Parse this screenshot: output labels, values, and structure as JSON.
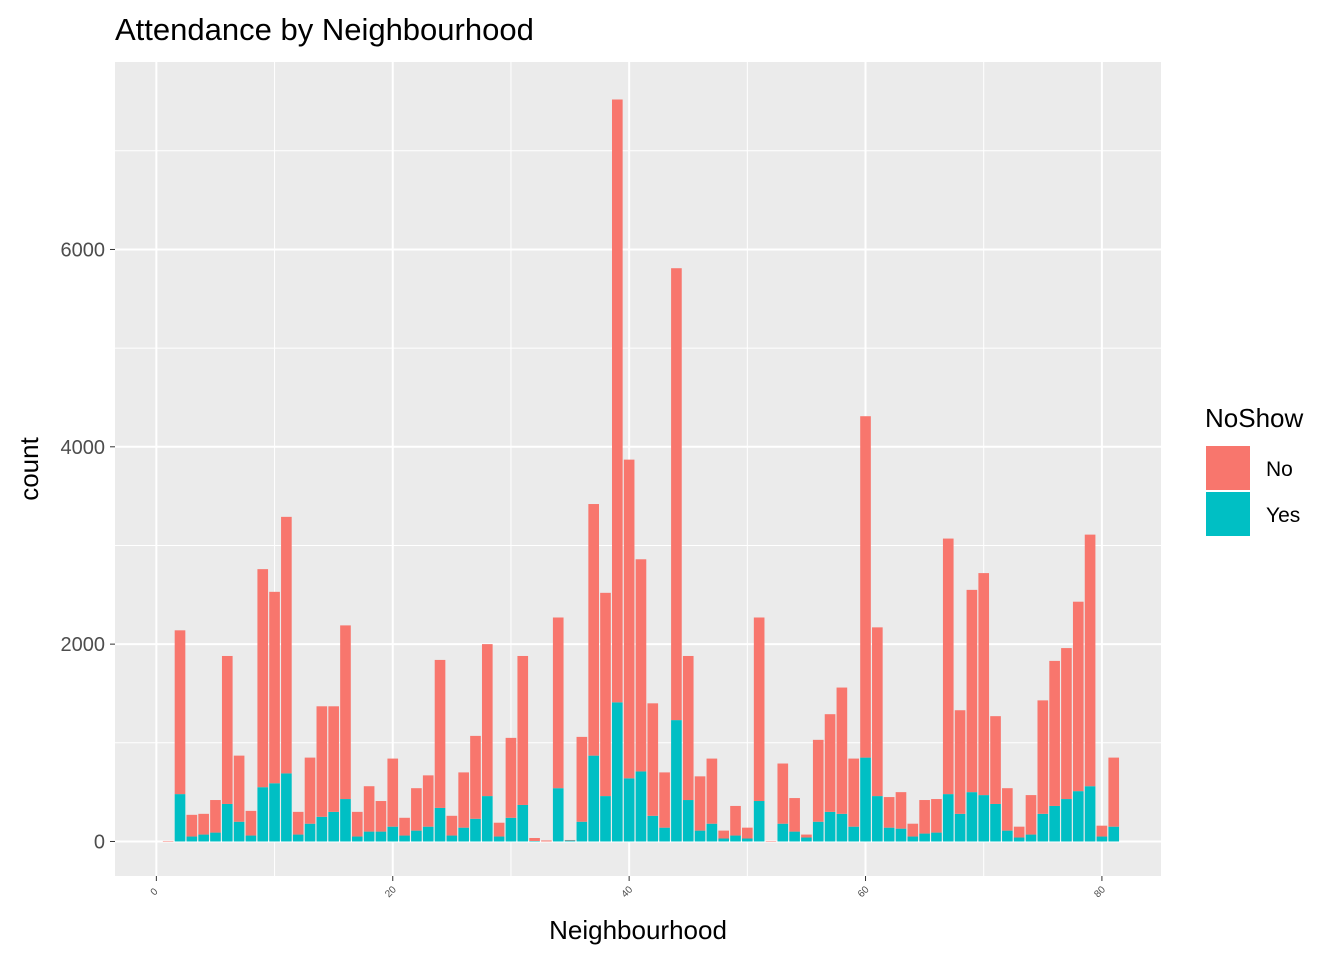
{
  "chart_data": {
    "type": "bar",
    "stacked": true,
    "title": "Attendance by Neighbourhood",
    "xlabel": "Neighbourhood",
    "ylabel": "count",
    "xlim": [
      -3.5,
      85
    ],
    "ylim": [
      -350,
      7900
    ],
    "x_ticks": [
      0,
      20,
      40,
      60,
      80
    ],
    "y_ticks": [
      0,
      2000,
      4000,
      6000
    ],
    "grid": true,
    "legend": {
      "title": "NoShow",
      "position": "right",
      "entries": [
        {
          "label": "No",
          "color": "#F8766D"
        },
        {
          "label": "Yes",
          "color": "#00BFC4"
        }
      ]
    },
    "x": [
      1,
      2,
      3,
      4,
      5,
      6,
      7,
      8,
      9,
      10,
      11,
      12,
      13,
      14,
      15,
      16,
      17,
      18,
      19,
      20,
      21,
      22,
      23,
      24,
      25,
      26,
      27,
      28,
      29,
      30,
      31,
      32,
      33,
      34,
      35,
      36,
      37,
      38,
      39,
      40,
      41,
      42,
      43,
      44,
      45,
      46,
      47,
      48,
      49,
      50,
      51,
      52,
      53,
      54,
      55,
      56,
      57,
      58,
      59,
      60,
      61,
      62,
      63,
      64,
      65,
      66,
      67,
      68,
      69,
      70,
      71,
      72,
      73,
      74,
      75,
      76,
      77,
      78,
      79,
      80,
      81
    ],
    "series": [
      {
        "name": "Yes",
        "color": "#00BFC4",
        "values": [
          0,
          480,
          50,
          70,
          90,
          380,
          200,
          60,
          550,
          590,
          690,
          70,
          180,
          250,
          300,
          430,
          50,
          100,
          100,
          150,
          60,
          110,
          150,
          340,
          60,
          140,
          230,
          460,
          50,
          240,
          370,
          5,
          0,
          540,
          10,
          200,
          870,
          460,
          1410,
          640,
          710,
          260,
          140,
          1230,
          420,
          110,
          180,
          30,
          60,
          30,
          410,
          0,
          180,
          100,
          40,
          200,
          300,
          280,
          150,
          850,
          460,
          140,
          130,
          50,
          80,
          90,
          480,
          280,
          500,
          470,
          380,
          110,
          40,
          70,
          280,
          360,
          430,
          510,
          560,
          50,
          150
        ]
      },
      {
        "name": "No",
        "color": "#F8766D",
        "values": [
          5,
          1660,
          220,
          210,
          330,
          1500,
          670,
          250,
          2210,
          1940,
          2600,
          230,
          670,
          1120,
          1070,
          1760,
          250,
          460,
          310,
          690,
          180,
          430,
          520,
          1500,
          200,
          560,
          840,
          1540,
          140,
          810,
          1510,
          30,
          10,
          1730,
          5,
          860,
          2550,
          2060,
          6110,
          3230,
          2150,
          1140,
          560,
          4580,
          1460,
          550,
          660,
          80,
          300,
          110,
          1860,
          5,
          610,
          340,
          30,
          830,
          990,
          1280,
          690,
          3460,
          1710,
          310,
          370,
          130,
          340,
          340,
          2590,
          1050,
          2050,
          2250,
          890,
          430,
          110,
          400,
          1150,
          1470,
          1530,
          1920,
          2550,
          110,
          700
        ]
      }
    ]
  }
}
